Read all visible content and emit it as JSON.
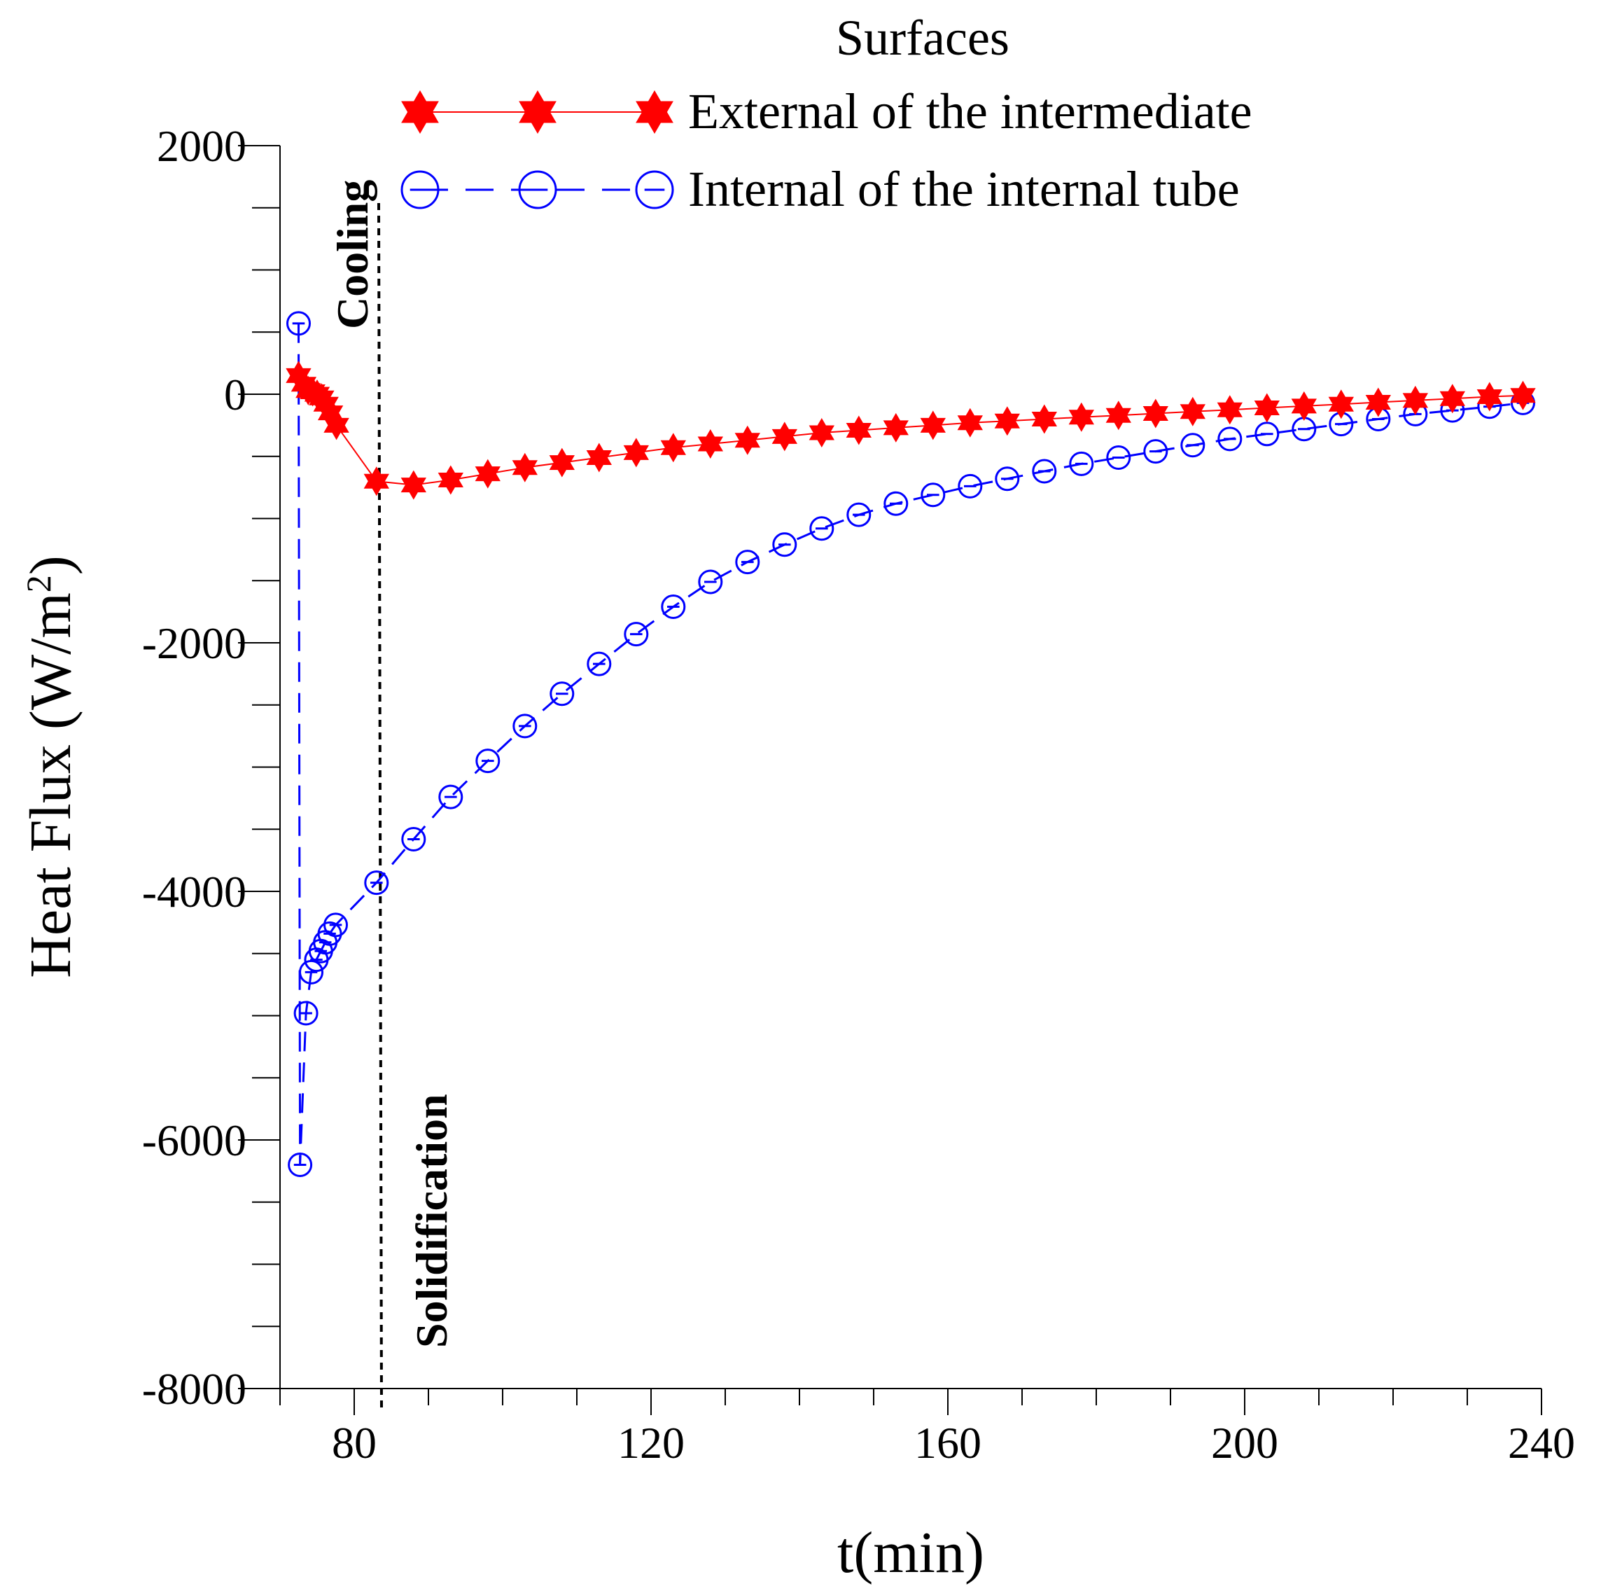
{
  "chart_data": {
    "type": "line",
    "title": "",
    "xlabel": "t(min)",
    "ylabel": "Heat Flux (W/m²)",
    "ylabel_main": "Heat Flux (W/m",
    "ylabel_sup": "2",
    "ylabel_close": ")",
    "xlim": [
      70,
      240
    ],
    "ylim": [
      -8000,
      2000
    ],
    "x_ticks": [
      80,
      120,
      160,
      200,
      240
    ],
    "x_tick_labels": [
      "80",
      "120",
      "160",
      "200",
      "240"
    ],
    "x_minor_step": 10,
    "y_ticks": [
      2000,
      0,
      -2000,
      -4000,
      -6000,
      -8000
    ],
    "y_tick_labels": [
      "2000",
      "0",
      "-2000",
      "-4000",
      "-6000",
      "-8000"
    ],
    "y_minor_step": 500,
    "grid": false,
    "legend": {
      "title": "Surfaces",
      "placement": "top-right",
      "entries": [
        "External of the intermediate",
        "Internal of the internal tube"
      ]
    },
    "annotations": [
      {
        "text": "Cooling",
        "x": 83.3
      },
      {
        "text": "Solidification",
        "x": 83.3
      }
    ],
    "divider_x": 83.3,
    "series": [
      {
        "name": "External of the intermediate",
        "color": "#ff0000",
        "marker": "star",
        "line": "solid",
        "x": [
          72.5,
          73.2,
          73.8,
          74.4,
          75.0,
          75.6,
          76.2,
          76.8,
          77.6,
          83,
          88,
          93,
          98,
          103,
          108,
          113,
          118,
          123,
          128,
          133,
          138,
          143,
          148,
          153,
          158,
          163,
          168,
          173,
          178,
          183,
          188,
          193,
          198,
          203,
          208,
          213,
          218,
          223,
          228,
          233,
          237.5
        ],
        "y": [
          150,
          80,
          30,
          20,
          0,
          -30,
          -80,
          -150,
          -250,
          -700,
          -730,
          -690,
          -640,
          -590,
          -550,
          -510,
          -470,
          -430,
          -400,
          -370,
          -340,
          -310,
          -290,
          -270,
          -250,
          -230,
          -215,
          -200,
          -185,
          -170,
          -155,
          -140,
          -125,
          -110,
          -95,
          -80,
          -65,
          -50,
          -35,
          -20,
          -10
        ]
      },
      {
        "name": "Internal of the internal tube",
        "color": "#0000ff",
        "marker": "circle",
        "line": "dashed",
        "x": [
          72.5,
          72.7,
          73.5,
          74.2,
          74.9,
          75.5,
          76.1,
          76.7,
          77.5,
          83,
          88,
          93,
          98,
          103,
          108,
          113,
          118,
          123,
          128,
          133,
          138,
          143,
          148,
          153,
          158,
          163,
          168,
          173,
          178,
          183,
          188,
          193,
          198,
          203,
          208,
          213,
          218,
          223,
          228,
          233,
          237.5
        ],
        "y": [
          570,
          -6200,
          -4980,
          -4650,
          -4550,
          -4480,
          -4410,
          -4340,
          -4270,
          -3930,
          -3580,
          -3240,
          -2950,
          -2670,
          -2410,
          -2170,
          -1930,
          -1710,
          -1510,
          -1350,
          -1210,
          -1080,
          -970,
          -880,
          -810,
          -740,
          -680,
          -620,
          -560,
          -510,
          -460,
          -410,
          -360,
          -320,
          -280,
          -240,
          -200,
          -160,
          -130,
          -100,
          -70
        ]
      }
    ]
  }
}
